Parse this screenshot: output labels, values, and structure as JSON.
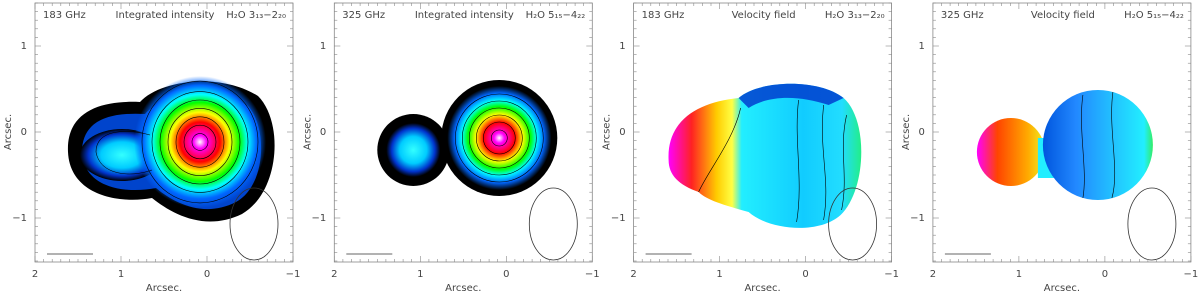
{
  "panels": [
    {
      "frequency": "183 GHz",
      "map": "Integrated intensity",
      "line": "H₂O 3₁₃−2₂₀",
      "x_label": "Arcsec.",
      "y_label": "Arcsec.",
      "x_ticks": [
        "2",
        "1",
        "0",
        "−1"
      ],
      "y_ticks": [
        "1",
        "0",
        "−1"
      ]
    },
    {
      "frequency": "325 GHz",
      "map": "Integrated intensity",
      "line": "H₂O 5₁₅−4₂₂",
      "x_label": "Arcsec.",
      "y_label": "Arcsec.",
      "x_ticks": [
        "2",
        "1",
        "0",
        "−1"
      ],
      "y_ticks": [
        "1",
        "0",
        "−1"
      ]
    },
    {
      "frequency": "183 GHz",
      "map": "Velocity field",
      "line": "H₂O 3₁₃−2₂₀",
      "x_label": "Arcsec.",
      "y_label": "Arcsec.",
      "x_ticks": [
        "2",
        "1",
        "0",
        "−1"
      ],
      "y_ticks": [
        "1",
        "0",
        "−1"
      ]
    },
    {
      "frequency": "325 GHz",
      "map": "Velocity field",
      "line": "H₂O 5₁₅−4₂₂",
      "x_label": "Arcsec.",
      "y_label": "Arcsec.",
      "x_ticks": [
        "2",
        "1",
        "0",
        "−1"
      ],
      "y_ticks": [
        "1",
        "0",
        "−1"
      ]
    }
  ]
}
